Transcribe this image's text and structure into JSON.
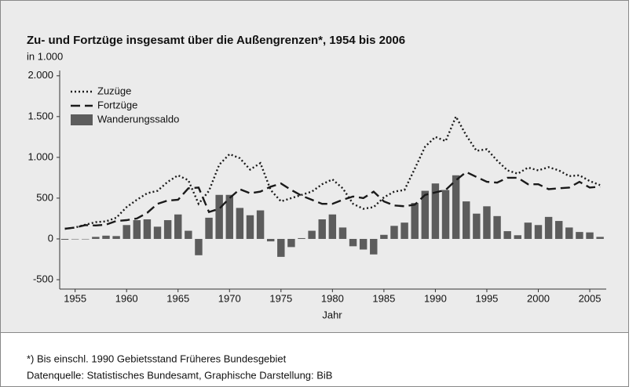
{
  "chart_data": {
    "type": "bar-line",
    "title": "Zu- und Fortzüge insgesamt über die Außengrenzen*, 1954 bis 2006",
    "y_label": "in 1.000",
    "x_label": "Jahr",
    "footnote": "*) Bis einschl. 1990 Gebietsstand Früheres Bundesgebiet",
    "source": "Datenquelle: Statistisches Bundesamt, Graphische Darstellung: BiB",
    "x": [
      1954,
      1955,
      1956,
      1957,
      1958,
      1959,
      1960,
      1961,
      1962,
      1963,
      1964,
      1965,
      1966,
      1967,
      1968,
      1969,
      1970,
      1971,
      1972,
      1973,
      1974,
      1975,
      1976,
      1977,
      1978,
      1979,
      1980,
      1981,
      1982,
      1983,
      1984,
      1985,
      1986,
      1987,
      1988,
      1989,
      1990,
      1991,
      1992,
      1993,
      1994,
      1995,
      1996,
      1997,
      1998,
      1999,
      2000,
      2001,
      2002,
      2003,
      2004,
      2005,
      2006
    ],
    "xlim": [
      1953.5,
      2006.6
    ],
    "xticks": [
      1955,
      1960,
      1965,
      1970,
      1975,
      1980,
      1985,
      1990,
      1995,
      2000,
      2005
    ],
    "ylim": [
      -615,
      2065
    ],
    "yticks": [
      {
        "value": 2000,
        "label": "2.000"
      },
      {
        "value": 1500,
        "label": "1.500"
      },
      {
        "value": 1000,
        "label": "1.000"
      },
      500,
      0,
      -500
    ],
    "legend": "top-left",
    "series": [
      {
        "name": "Zuzüge",
        "kind": "line",
        "dash": "dotted",
        "color": "#1a1a1a",
        "values": [
          125,
          140,
          175,
          205,
          215,
          260,
          390,
          480,
          560,
          590,
          700,
          780,
          720,
          430,
          590,
          910,
          1040,
          990,
          850,
          930,
          600,
          460,
          500,
          540,
          580,
          670,
          730,
          620,
          430,
          370,
          390,
          510,
          580,
          600,
          860,
          1130,
          1250,
          1200,
          1500,
          1270,
          1080,
          1100,
          960,
          840,
          800,
          875,
          840,
          880,
          840,
          770,
          780,
          710,
          660
        ]
      },
      {
        "name": "Fortzüge",
        "kind": "line",
        "dash": "dashed",
        "color": "#1a1a1a",
        "values": [
          125,
          140,
          170,
          165,
          175,
          220,
          230,
          250,
          320,
          430,
          470,
          480,
          620,
          630,
          330,
          370,
          500,
          610,
          560,
          580,
          640,
          680,
          600,
          530,
          480,
          430,
          430,
          480,
          520,
          500,
          580,
          460,
          410,
          400,
          420,
          540,
          570,
          600,
          720,
          820,
          760,
          700,
          690,
          750,
          750,
          670,
          670,
          610,
          620,
          630,
          700,
          630,
          640
        ]
      },
      {
        "name": "Wanderungssaldo",
        "kind": "bar",
        "color": "#5c5c5c",
        "values": [
          -10,
          -5,
          -5,
          25,
          40,
          35,
          170,
          230,
          240,
          150,
          230,
          300,
          100,
          -200,
          260,
          540,
          540,
          380,
          290,
          350,
          -30,
          -220,
          -100,
          10,
          100,
          240,
          300,
          140,
          -90,
          -130,
          -190,
          50,
          160,
          200,
          440,
          590,
          680,
          600,
          780,
          460,
          310,
          400,
          280,
          95,
          45,
          200,
          170,
          270,
          220,
          140,
          85,
          80,
          25
        ]
      }
    ]
  }
}
